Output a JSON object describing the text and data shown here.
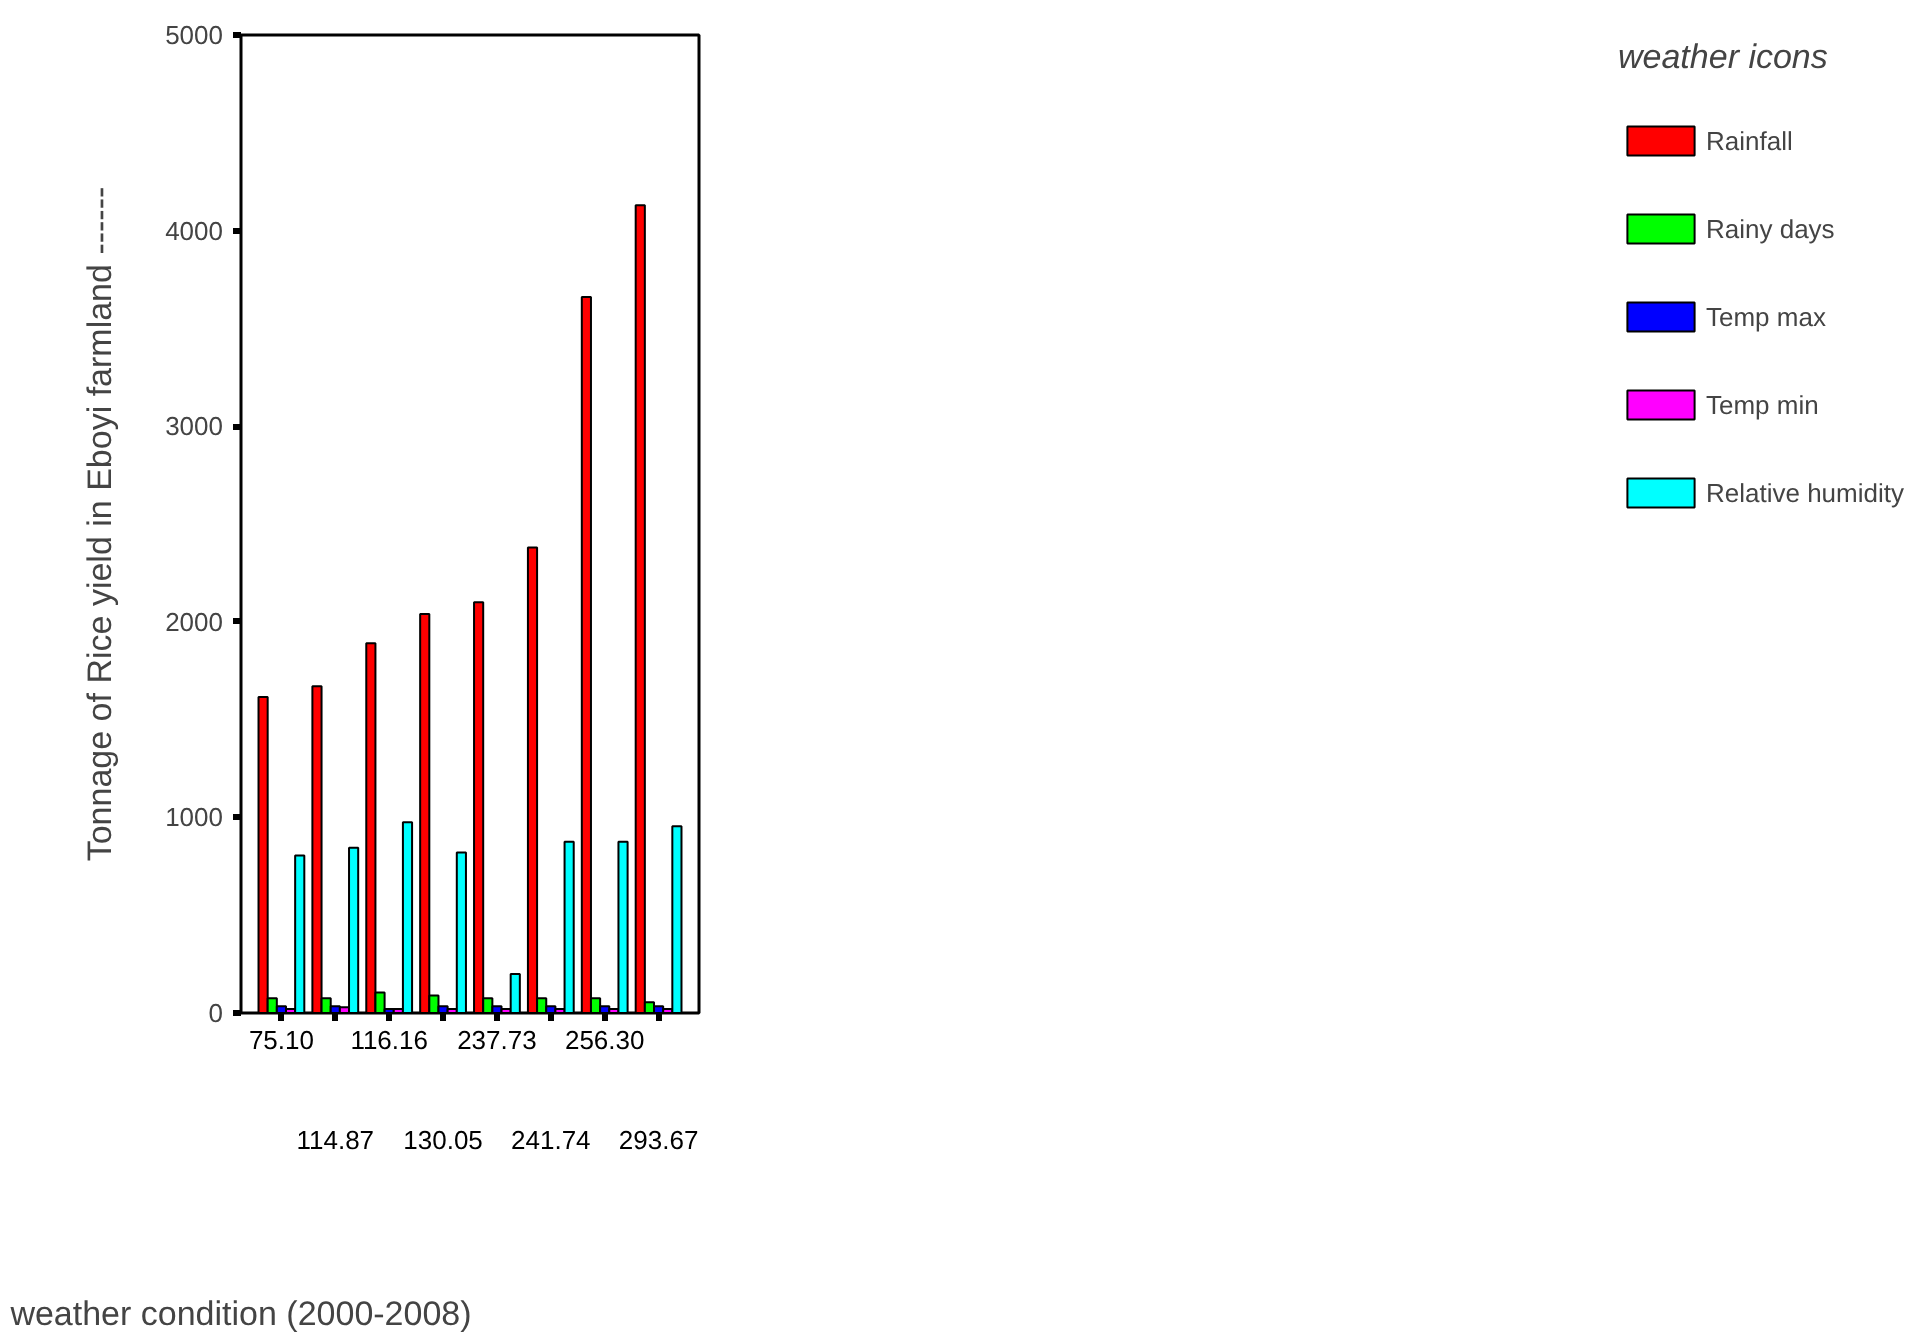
{
  "chart_data": {
    "type": "bar",
    "xlabel": "weather condition (2000-2008)",
    "ylabel": "Tonnage of Rice yield in Eboyi farmland ------",
    "legend_title": "weather icons",
    "categories": [
      "75.10",
      "114.87",
      "116.16",
      "130.05",
      "237.73",
      "241.74",
      "256.30",
      "293.67"
    ],
    "series": [
      {
        "name": "Rainfall",
        "color": "#ff0000",
        "values": [
          1615,
          1670,
          1890,
          2040,
          2100,
          2380,
          3660,
          4130
        ]
      },
      {
        "name": "Rainy days",
        "color": "#00ff00",
        "values": [
          75,
          75,
          105,
          90,
          75,
          75,
          75,
          55
        ]
      },
      {
        "name": "Temp max",
        "color": "#0000ff",
        "values": [
          35,
          35,
          20,
          35,
          35,
          35,
          35,
          35
        ]
      },
      {
        "name": "Temp min",
        "color": "#ff00ff",
        "values": [
          20,
          30,
          20,
          20,
          20,
          20,
          20,
          20
        ]
      },
      {
        "name": "Relative humidity",
        "color": "#00ffff",
        "values": [
          805,
          845,
          975,
          820,
          200,
          875,
          875,
          955
        ]
      }
    ],
    "ylim": [
      0,
      5000
    ],
    "yticks": [
      0,
      1000,
      2000,
      3000,
      4000,
      5000
    ],
    "grid": false,
    "legend": "right"
  }
}
